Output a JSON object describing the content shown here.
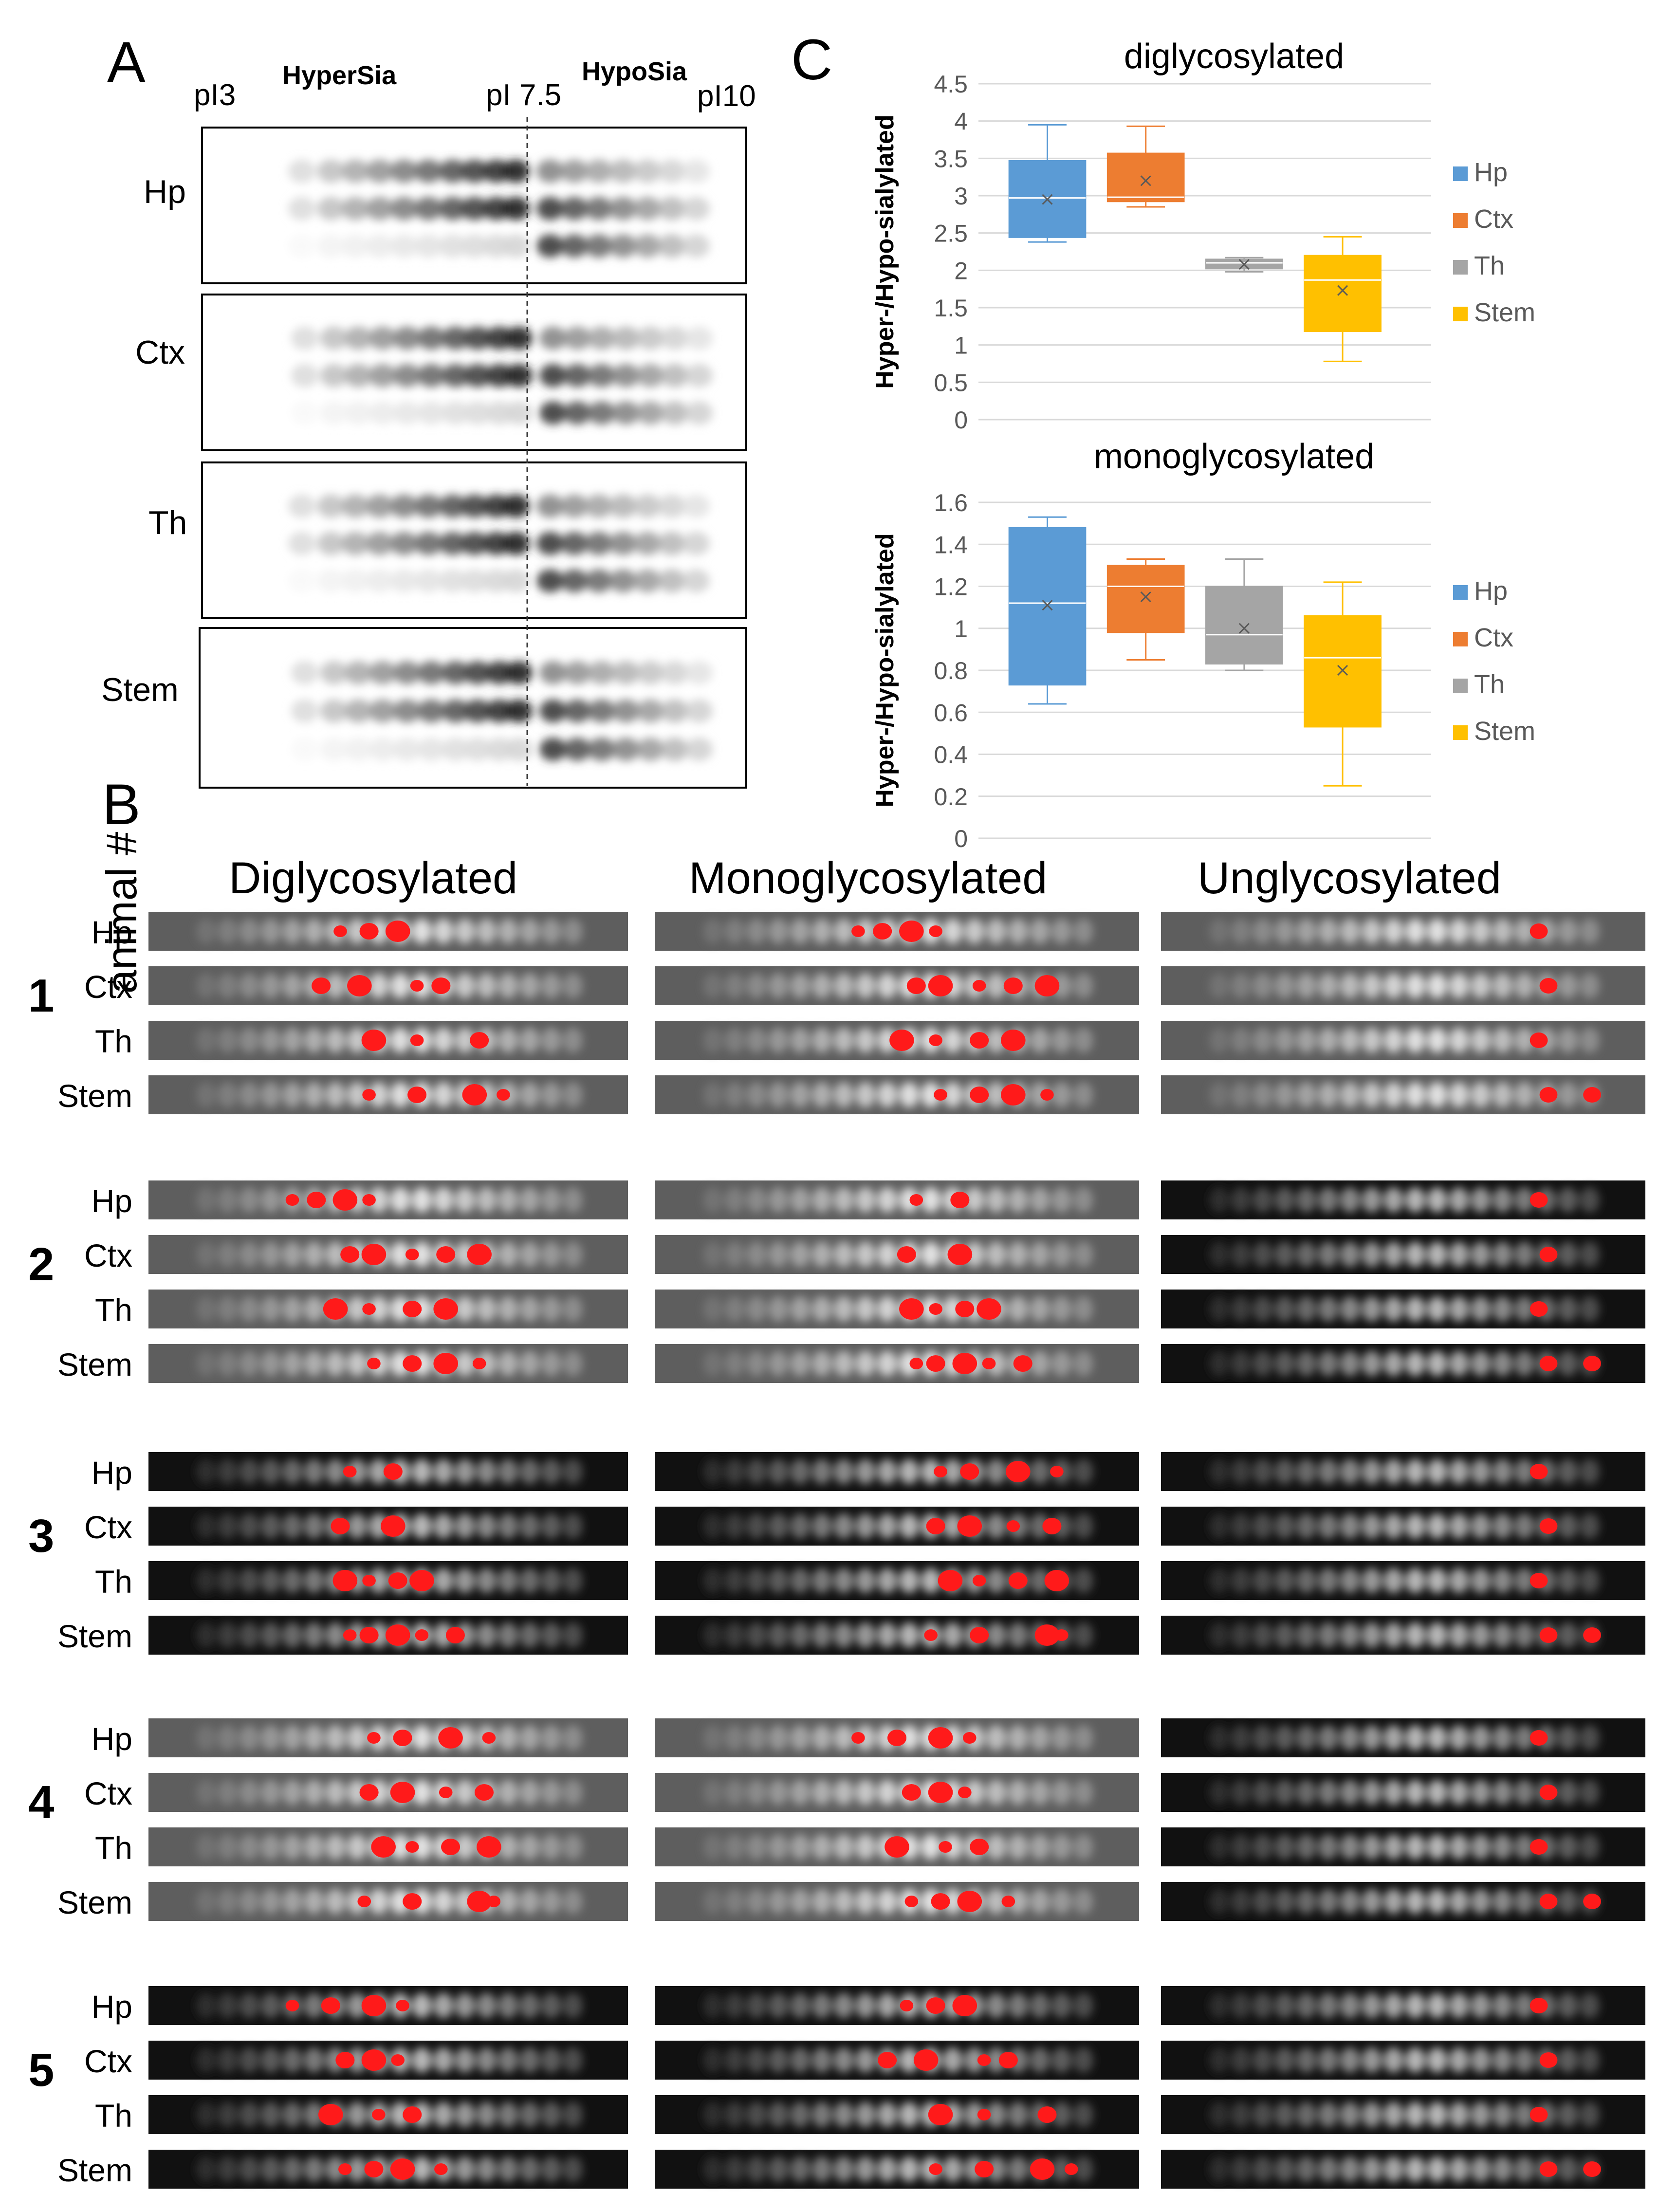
{
  "panel_a": {
    "letter": "A",
    "left_ph": "pI3",
    "hypersia": "HyperSia",
    "mid_ph": "pI 7.5",
    "hyposia": "HypoSia",
    "right_ph": "pI10",
    "rows": [
      "Hp",
      "Ctx",
      "Th",
      "Stem"
    ]
  },
  "panel_b": {
    "letter": "B",
    "axis_label": "animal #",
    "col_titles": [
      "Diglycosylated",
      "Monoglycosylated",
      "Unglycosylated"
    ],
    "groups": [
      {
        "num": "1",
        "rows": [
          "Hp",
          "Ctx",
          "Th",
          "Stem"
        ]
      },
      {
        "num": "2",
        "rows": [
          "Hp",
          "Ctx",
          "Th",
          "Stem"
        ]
      },
      {
        "num": "3",
        "rows": [
          "Hp",
          "Ctx",
          "Th",
          "Stem"
        ]
      },
      {
        "num": "4",
        "rows": [
          "Hp",
          "Ctx",
          "Th",
          "Stem"
        ]
      },
      {
        "num": "5",
        "rows": [
          "Hp",
          "Ctx",
          "Th",
          "Stem"
        ]
      }
    ]
  },
  "panel_c": {
    "letter": "C",
    "colors": {
      "Hp": "#5b9bd5",
      "Ctx": "#ed7d31",
      "Th": "#a5a5a5",
      "Stem": "#ffc000"
    },
    "legend": [
      "Hp",
      "Ctx",
      "Th",
      "Stem"
    ]
  },
  "chart_data": [
    {
      "type": "box",
      "title": "diglycosylated",
      "ylabel": "Hyper-/Hypo-sialylated",
      "ylim": [
        0,
        4.5
      ],
      "yticks": [
        "0",
        "0.5",
        "1",
        "1.5",
        "2",
        "2.5",
        "3",
        "3.5",
        "4",
        "4.5"
      ],
      "series": [
        {
          "name": "Hp",
          "min": 2.38,
          "q1": 2.44,
          "median": 2.97,
          "q3": 3.47,
          "max": 3.95,
          "mean": 2.95
        },
        {
          "name": "Ctx",
          "min": 2.85,
          "q1": 2.92,
          "median": 2.98,
          "q3": 3.57,
          "max": 3.93,
          "mean": 3.2
        },
        {
          "name": "Th",
          "min": 1.98,
          "q1": 2.02,
          "median": 2.1,
          "q3": 2.15,
          "max": 2.17,
          "mean": 2.08
        },
        {
          "name": "Stem",
          "min": 0.78,
          "q1": 1.18,
          "median": 1.87,
          "q3": 2.2,
          "max": 2.45,
          "mean": 1.73
        }
      ]
    },
    {
      "type": "box",
      "title": "monoglycosylated",
      "ylabel": "Hyper-/Hypo-sialylated",
      "ylim": [
        0,
        1.6
      ],
      "yticks": [
        "0",
        "0.2",
        "0.4",
        "0.6",
        "0.8",
        "1",
        "1.2",
        "1.4",
        "1.6"
      ],
      "series": [
        {
          "name": "Hp",
          "min": 0.64,
          "q1": 0.73,
          "median": 1.12,
          "q3": 1.48,
          "max": 1.53,
          "mean": 1.11
        },
        {
          "name": "Ctx",
          "min": 0.85,
          "q1": 0.98,
          "median": 1.2,
          "q3": 1.3,
          "max": 1.33,
          "mean": 1.15
        },
        {
          "name": "Th",
          "min": 0.8,
          "q1": 0.83,
          "median": 0.97,
          "q3": 1.2,
          "max": 1.33,
          "mean": 1.0
        },
        {
          "name": "Stem",
          "min": 0.25,
          "q1": 0.53,
          "median": 0.86,
          "q3": 1.06,
          "max": 1.22,
          "mean": 0.8
        }
      ]
    }
  ]
}
